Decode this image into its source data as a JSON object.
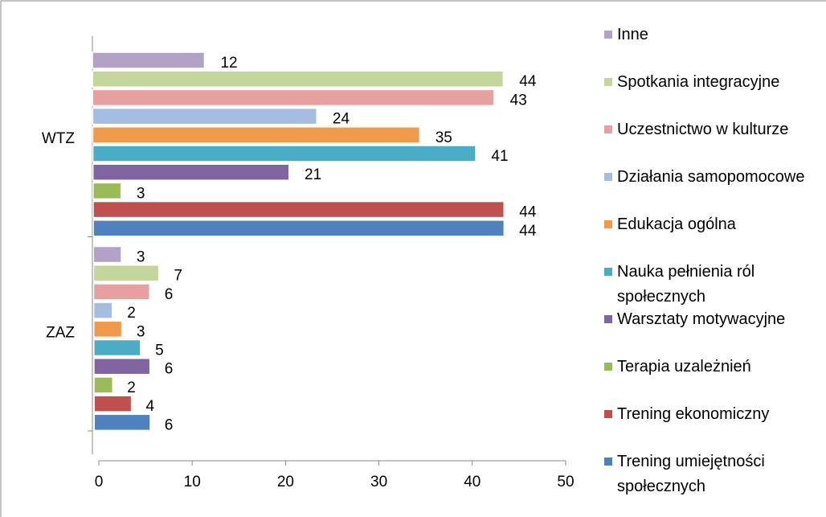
{
  "chart_data": {
    "type": "bar",
    "orientation": "horizontal",
    "categories": [
      "WTZ",
      "ZAZ"
    ],
    "series": [
      {
        "name": "Inne",
        "color": "#b3a2c7",
        "values": [
          12,
          3
        ]
      },
      {
        "name": "Spotkania integracyjne",
        "color": "#c3d69b",
        "values": [
          44,
          7
        ]
      },
      {
        "name": "Uczestnictwo w kulturze",
        "color": "#e6a09f",
        "values": [
          43,
          6
        ]
      },
      {
        "name": "Działania samopomocowe",
        "color": "#a5bde0",
        "values": [
          24,
          2
        ]
      },
      {
        "name": "Edukacja ogólna",
        "color": "#f0994a",
        "values": [
          35,
          3
        ]
      },
      {
        "name": "Nauka pełnienia ról społecznych",
        "color": "#4bacc6",
        "values": [
          41,
          5
        ]
      },
      {
        "name": "Warsztaty motywacyjne",
        "color": "#8064a2",
        "values": [
          21,
          6
        ]
      },
      {
        "name": "Terapia uzależnień",
        "color": "#9bbb59",
        "values": [
          3,
          2
        ]
      },
      {
        "name": "Trening ekonomiczny",
        "color": "#c0504d",
        "values": [
          44,
          4
        ]
      },
      {
        "name": "Trening umiejętności społecznych",
        "color": "#4f81bd",
        "values": [
          44,
          6
        ]
      }
    ],
    "xlim": [
      0,
      50
    ],
    "xticks": [
      0,
      10,
      20,
      30,
      40,
      50
    ],
    "legend": "right"
  }
}
